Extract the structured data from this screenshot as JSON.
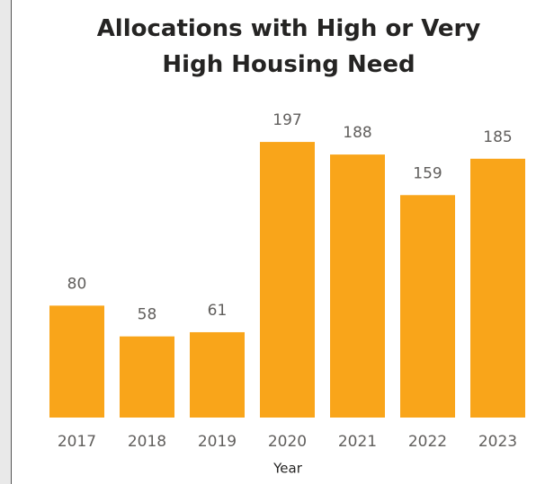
{
  "chart_data": {
    "type": "bar",
    "title": "Allocations with High or Very High Housing Need",
    "x_label": "Year",
    "categories": [
      "2017",
      "2018",
      "2019",
      "2020",
      "2021",
      "2022",
      "2023"
    ],
    "values": [
      80,
      58,
      61,
      197,
      188,
      159,
      185
    ],
    "color": "#f9a51a"
  }
}
